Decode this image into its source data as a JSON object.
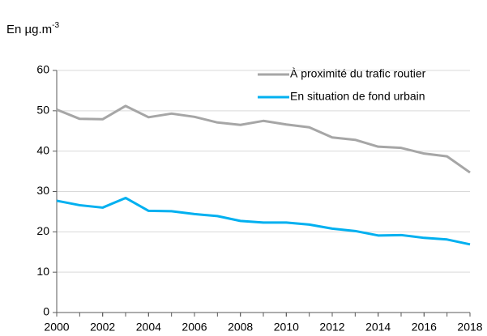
{
  "chart_data": {
    "type": "line",
    "y_label": "En µg.m",
    "y_label_sup": "-3",
    "x": [
      2000,
      2001,
      2002,
      2003,
      2004,
      2005,
      2006,
      2007,
      2008,
      2009,
      2010,
      2011,
      2012,
      2013,
      2014,
      2015,
      2016,
      2017,
      2018
    ],
    "series": [
      {
        "name": "À proximité du trafic routier",
        "color": "#a6a6a6",
        "values": [
          50.3,
          48.0,
          47.9,
          51.2,
          48.4,
          49.3,
          48.5,
          47.1,
          46.5,
          47.5,
          46.6,
          45.9,
          43.4,
          42.8,
          41.1,
          40.8,
          39.4,
          38.7,
          34.7
        ]
      },
      {
        "name": "En situation de fond urbain",
        "color": "#00b0f0",
        "values": [
          27.7,
          26.6,
          26.0,
          28.4,
          25.2,
          25.1,
          24.4,
          23.9,
          22.7,
          22.3,
          22.3,
          21.8,
          20.8,
          20.2,
          19.1,
          19.2,
          18.5,
          18.1,
          16.9
        ]
      }
    ],
    "xlim": [
      2000,
      2018
    ],
    "xticks": [
      2000,
      2002,
      2004,
      2006,
      2008,
      2010,
      2012,
      2014,
      2016,
      2018
    ],
    "ylim": [
      0,
      60
    ],
    "yticks": [
      0,
      10,
      20,
      30,
      40,
      50,
      60
    ],
    "grid": true,
    "legend": "upper-right"
  }
}
